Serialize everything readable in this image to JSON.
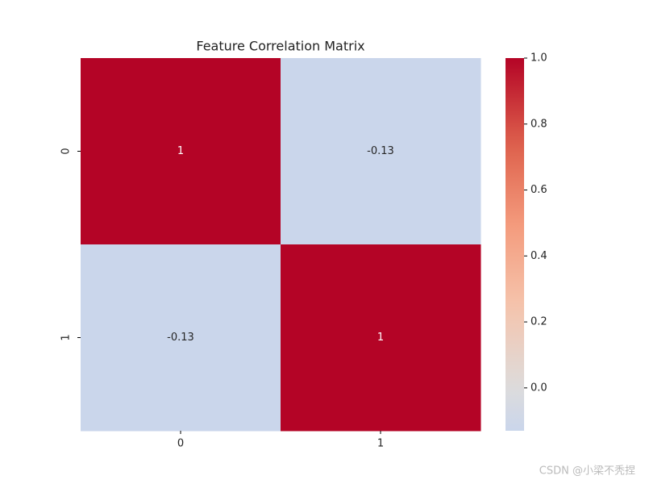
{
  "chart_data": {
    "type": "heatmap",
    "title": "Feature Correlation Matrix",
    "x_categories": [
      "0",
      "1"
    ],
    "y_categories": [
      "0",
      "1"
    ],
    "values": [
      [
        1,
        -0.13
      ],
      [
        -0.13,
        1
      ]
    ],
    "value_labels": [
      [
        "1",
        "-0.13"
      ],
      [
        "-0.13",
        "1"
      ]
    ],
    "colormap": "coolwarm",
    "center": 0,
    "clim": [
      -0.13,
      1
    ],
    "cticks": [
      {
        "value": 0,
        "label": "0.0"
      },
      0.2,
      0.4,
      0.6,
      0.8,
      {
        "value": 1,
        "label": "1.0"
      }
    ],
    "watermark": "CSDN @小梁不秃捏"
  }
}
